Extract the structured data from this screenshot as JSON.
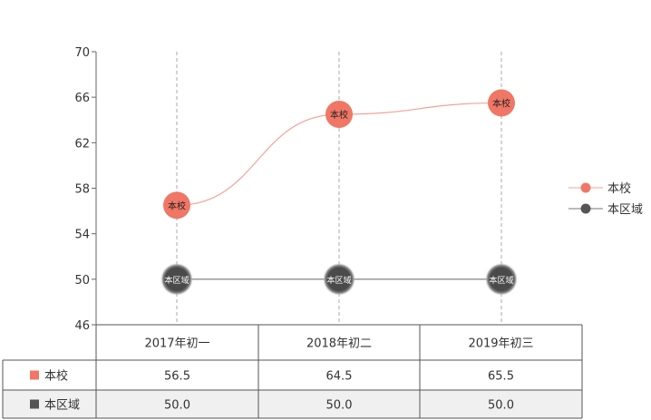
{
  "chart_data": {
    "type": "line",
    "categories": [
      "2017年初一",
      "2018年初二",
      "2019年初三"
    ],
    "ylim": [
      46,
      70
    ],
    "yticks": [
      "70",
      "66",
      "62",
      "58",
      "54",
      "50",
      "46"
    ],
    "grid": "vertical dashed",
    "legend_position": "right",
    "series": [
      {
        "name": "本校",
        "values": [
          56.5,
          64.5,
          65.5
        ],
        "display": [
          "56.5",
          "64.5",
          "65.5"
        ],
        "color": "#f07766",
        "line_color": "#f3a397",
        "row_bg": "#ffffff"
      },
      {
        "name": "本区域",
        "values": [
          50.0,
          50.0,
          50.0
        ],
        "display": [
          "50.0",
          "50.0",
          "50.0"
        ],
        "color": "#555555",
        "line_color": "#777777",
        "row_bg": "#f0f0f0"
      }
    ]
  }
}
